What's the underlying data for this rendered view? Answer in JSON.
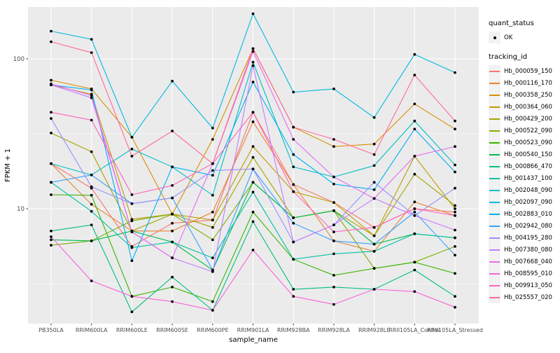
{
  "figure": {
    "panel_bg": "#EBEBEB",
    "grid_color": "#FFFFFF",
    "point_color": "#000000",
    "axis_text_color": "#4D4D4D",
    "tick_color": "#333333",
    "legend_key_bg": "#F2F2F2"
  },
  "legend": {
    "quant_status_title": "quant_status",
    "quant_status_ok_label": "OK",
    "tracking_id_title": "tracking_id"
  },
  "chart_data": {
    "type": "line",
    "title": "",
    "xlabel": "sample_name",
    "ylabel": "FPKM + 1",
    "y_scale": "log10",
    "y_ticks": [
      10,
      100
    ],
    "ylim": [
      1.6,
      240
    ],
    "grid": true,
    "legend_position": "right",
    "point_shape": "filled-black-circle",
    "note": "values are approximate FPKM+1 readings from log-scale axis",
    "categories": [
      "PB350LA",
      "RRIM600LA",
      "RRIM600LE",
      "RRIM600SE",
      "RRIM600PE",
      "RRIM901LA",
      "RRIM928BA",
      "RRIM928LA",
      "RRIM928LE",
      "RRII105LA_Control",
      "RRII105LA_Stressed"
    ],
    "series": [
      {
        "name": "Hb_000059_150",
        "color": "#F8766D",
        "values": [
          20,
          13.7,
          5.6,
          8.0,
          8.4,
          44,
          14.5,
          11,
          7.5,
          10,
          9.5
        ]
      },
      {
        "name": "Hb_000116_170",
        "color": "#EA8331",
        "values": [
          20,
          10.7,
          7.1,
          7.1,
          9.5,
          38,
          14.5,
          6.1,
          5.2,
          11.1,
          9.0
        ]
      },
      {
        "name": "Hb_000358_250",
        "color": "#D89000",
        "values": [
          72,
          63,
          30,
          9.2,
          29,
          117,
          35,
          26,
          27,
          50,
          34
        ]
      },
      {
        "name": "Hb_000364_060",
        "color": "#C09B00",
        "values": [
          67,
          58,
          8.5,
          9.2,
          8.4,
          26,
          13,
          11,
          6.6,
          22.4,
          10
        ]
      },
      {
        "name": "Hb_000429_200",
        "color": "#A3A500",
        "values": [
          32,
          24,
          7.1,
          9.2,
          7.5,
          22,
          8.7,
          9.7,
          6.6,
          17,
          10.5
        ]
      },
      {
        "name": "Hb_000522_090",
        "color": "#7CAE00",
        "values": [
          5.7,
          6.1,
          8.3,
          9.2,
          6.2,
          15,
          8.7,
          9.7,
          4.0,
          4.4,
          5.6
        ]
      },
      {
        "name": "Hb_000523_090",
        "color": "#39B600",
        "values": [
          12.4,
          12.3,
          2.6,
          3.0,
          2.4,
          9.5,
          4.6,
          3.6,
          4.0,
          4.4,
          3.7
        ]
      },
      {
        "name": "Hb_000540_150",
        "color": "#00BB4E",
        "values": [
          6.2,
          6.1,
          7.1,
          6.0,
          3.9,
          15,
          8.7,
          9.7,
          5.8,
          6.8,
          6.4
        ]
      },
      {
        "name": "Hb_000866_470",
        "color": "#00BF7D",
        "values": [
          7.1,
          7.8,
          2.05,
          3.5,
          2.1,
          8.2,
          2.9,
          3.0,
          2.9,
          3.9,
          2.6
        ]
      },
      {
        "name": "Hb_001437_100",
        "color": "#00C1A3",
        "values": [
          15,
          9.6,
          5.5,
          6.0,
          4.7,
          12.9,
          4.6,
          5.0,
          5.2,
          6.8,
          6.4
        ]
      },
      {
        "name": "Hb_002048_090",
        "color": "#00BFC4",
        "values": [
          20,
          16.8,
          25,
          19,
          12.3,
          95,
          19,
          16.3,
          19.4,
          38.5,
          19.6
        ]
      },
      {
        "name": "Hb_002097_090",
        "color": "#00BAE0",
        "values": [
          153,
          135,
          30,
          71,
          34.5,
          200,
          60,
          63,
          40.6,
          107,
          81
        ]
      },
      {
        "name": "Hb_002883_010",
        "color": "#00B0F6",
        "values": [
          67,
          62,
          4.5,
          19,
          16.7,
          70,
          23,
          14.6,
          13.4,
          34,
          17.6
        ]
      },
      {
        "name": "Hb_002942_080",
        "color": "#35A2FF",
        "values": [
          15,
          16.8,
          10.8,
          11.8,
          3.9,
          18.4,
          8.0,
          6.1,
          5.8,
          9.5,
          4.9
        ]
      },
      {
        "name": "Hb_004195_280",
        "color": "#9590FF",
        "values": [
          40,
          14,
          10.8,
          11.8,
          18,
          18.4,
          6.0,
          7.8,
          15,
          9.0,
          13.7
        ]
      },
      {
        "name": "Hb_007380_080",
        "color": "#C77CFF",
        "values": [
          67,
          55,
          7.0,
          4.7,
          3.8,
          90,
          6.0,
          7.8,
          11.7,
          9.0,
          7.2
        ]
      },
      {
        "name": "Hb_007668_040",
        "color": "#E76BF3",
        "values": [
          68,
          57,
          7.0,
          4.7,
          20,
          112,
          29,
          16.3,
          11.7,
          22.4,
          26
        ]
      },
      {
        "name": "Hb_008595_010",
        "color": "#FA62DB",
        "values": [
          6.5,
          3.3,
          2.6,
          2.4,
          2.1,
          5.3,
          2.6,
          2.3,
          2.9,
          2.8,
          2.2
        ]
      },
      {
        "name": "Hb_009913_050",
        "color": "#FF62BC",
        "values": [
          44,
          39,
          12.4,
          14.3,
          20,
          44,
          13,
          7.0,
          7.5,
          10,
          9.0
        ]
      },
      {
        "name": "Hb_025557_020",
        "color": "#FF6A98",
        "values": [
          130,
          110,
          22.4,
          33,
          20,
          117,
          35,
          29,
          23,
          78,
          38.5
        ]
      }
    ]
  }
}
